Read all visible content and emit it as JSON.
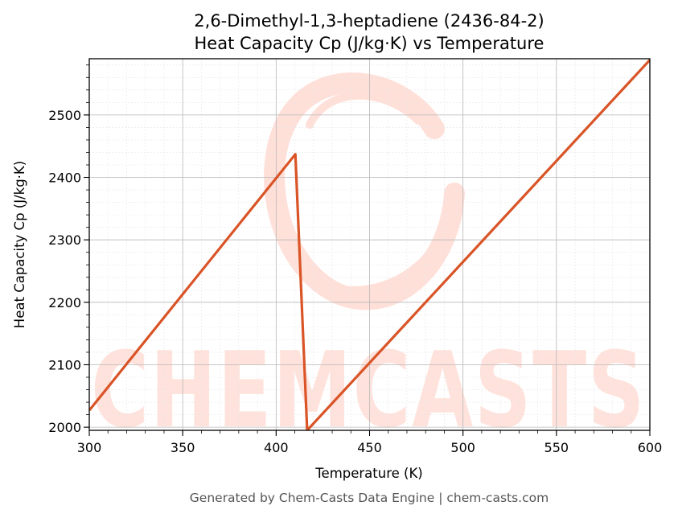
{
  "chart_data": {
    "type": "line",
    "title_lines": [
      "2,6-Dimethyl-1,3-heptadiene (2436-84-2)",
      "Heat Capacity Cp (J/kg·K) vs Temperature"
    ],
    "xlabel": "Temperature (K)",
    "ylabel": "Heat Capacity Cp (J/kg·K)",
    "xlim": [
      300,
      600
    ],
    "ylim": [
      1995,
      2590
    ],
    "x_ticks": [
      300,
      350,
      400,
      450,
      500,
      550,
      600
    ],
    "y_ticks": [
      2000,
      2100,
      2200,
      2300,
      2400,
      2500
    ],
    "grid": true,
    "series": [
      {
        "color": "#d95427",
        "points": [
          [
            300,
            2027
          ],
          [
            410.3,
            2437
          ],
          [
            416.6,
            1995
          ],
          [
            600,
            2588
          ]
        ]
      }
    ]
  },
  "watermark": {
    "text": "CHEMCASTS",
    "color": "#ffd9d0"
  },
  "footer": {
    "text": "Generated by Chem-Casts Data Engine | chem-casts.com"
  }
}
